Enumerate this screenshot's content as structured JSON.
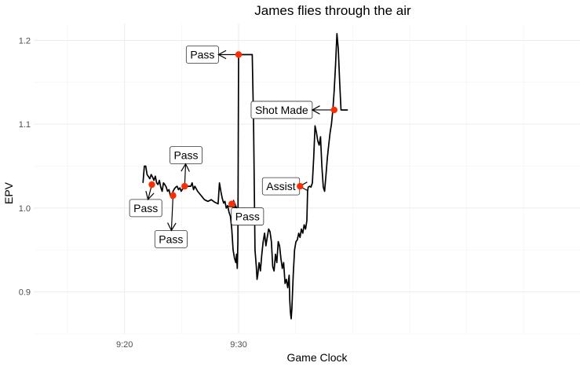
{
  "chart_data": {
    "type": "line",
    "title": "James flies through the air",
    "xlabel": "Game Clock",
    "ylabel": "EPV",
    "xlim": [
      9.2,
      10.0
    ],
    "ylim": [
      0.85,
      1.22
    ],
    "x_ticks": [
      {
        "value": 9.333,
        "label": "9:20"
      },
      {
        "value": 9.5,
        "label": "9:30"
      }
    ],
    "y_ticks": [
      {
        "value": 0.9,
        "label": "0.9"
      },
      {
        "value": 1.0,
        "label": "1.0"
      },
      {
        "value": 1.1,
        "label": "1.1"
      },
      {
        "value": 1.2,
        "label": "1.2"
      }
    ],
    "grid": true,
    "line_color": "#000000",
    "event_color": "#ff2d00",
    "series": [
      {
        "x": [
          9.36,
          9.362,
          9.364,
          9.366,
          9.37,
          9.372,
          9.374,
          9.376,
          9.378,
          9.38,
          9.382,
          9.384,
          9.386,
          9.388,
          9.39,
          9.392,
          9.394,
          9.396,
          9.398,
          9.4,
          9.402,
          9.404,
          9.406,
          9.408,
          9.41,
          9.412,
          9.414,
          9.416,
          9.418,
          9.42,
          9.425,
          9.43,
          9.432,
          9.434,
          9.436,
          9.44,
          9.445,
          9.45,
          9.455,
          9.46,
          9.465,
          9.47,
          9.472,
          9.474,
          9.476,
          9.478,
          9.48,
          9.482,
          9.484,
          9.486,
          9.488,
          9.49,
          9.492,
          9.494,
          9.496,
          9.497,
          9.498,
          9.499,
          9.5,
          9.501,
          9.502,
          9.503,
          9.504,
          9.505,
          9.506,
          9.52,
          9.522,
          9.524,
          9.526,
          9.527,
          9.528,
          9.53,
          9.532,
          9.534,
          9.536,
          9.538,
          9.54,
          9.542,
          9.544,
          9.546,
          9.548,
          9.55,
          9.552,
          9.554,
          9.556,
          9.558,
          9.56,
          9.562,
          9.564,
          9.566,
          9.568,
          9.57,
          9.572,
          9.574,
          9.575,
          9.576,
          9.577,
          9.578,
          9.58,
          9.582,
          9.584,
          9.586,
          9.588,
          9.59,
          9.592,
          9.594,
          9.596,
          9.598,
          9.6,
          9.601,
          9.602,
          9.604,
          9.606,
          9.608,
          9.61,
          9.612,
          9.614,
          9.616,
          9.618,
          9.62,
          9.622,
          9.624,
          9.626,
          9.627,
          9.628,
          9.63,
          9.632,
          9.634,
          9.636,
          9.638,
          9.64,
          9.642,
          9.644,
          9.646,
          9.648,
          9.65,
          9.652,
          9.654,
          9.656,
          9.658,
          9.66
        ],
        "y": [
          1.03,
          1.05,
          1.05,
          1.04,
          1.035,
          1.04,
          1.037,
          1.033,
          1.038,
          1.03,
          1.028,
          1.033,
          1.025,
          1.02,
          1.03,
          1.028,
          1.025,
          1.02,
          1.022,
          1.015,
          1.012,
          1.02,
          1.023,
          1.025,
          1.026,
          1.022,
          1.024,
          1.02,
          1.023,
          1.024,
          1.026,
          1.026,
          1.03,
          1.022,
          1.026,
          1.02,
          1.015,
          1.01,
          1.008,
          1.01,
          1.007,
          1.005,
          1.03,
          1.02,
          1.012,
          1.006,
          1.008,
          1.0,
          1.003,
          0.995,
          0.99,
          0.975,
          0.95,
          0.94,
          0.935,
          0.945,
          0.928,
          0.96,
          1.183,
          1.183,
          1.183,
          1.183,
          1.183,
          1.183,
          1.183,
          1.183,
          1.1,
          0.95,
          0.93,
          0.915,
          0.92,
          0.935,
          0.925,
          0.945,
          0.96,
          0.97,
          0.955,
          0.965,
          0.975,
          0.972,
          0.96,
          0.93,
          0.925,
          0.945,
          0.935,
          0.96,
          0.955,
          0.94,
          0.928,
          0.935,
          0.91,
          0.915,
          0.905,
          0.92,
          0.89,
          0.875,
          0.868,
          0.88,
          0.92,
          0.95,
          0.96,
          0.962,
          0.97,
          0.965,
          0.975,
          0.97,
          0.98,
          0.975,
          0.985,
          1.02,
          1.025,
          1.026,
          1.025,
          1.03,
          1.06,
          1.098,
          1.09,
          1.08,
          1.075,
          1.085,
          1.05,
          1.025,
          1.02,
          1.03,
          1.04,
          1.06,
          1.075,
          1.09,
          1.1,
          1.117,
          1.14,
          1.17,
          1.208,
          1.19,
          1.15,
          1.117,
          1.117,
          1.117,
          1.117,
          1.117,
          1.117
        ]
      }
    ],
    "events": [
      {
        "x": 9.373,
        "y": 1.028,
        "label": "Pass",
        "label_x": 9.364,
        "label_y": 1.0
      },
      {
        "x": 9.404,
        "y": 1.015,
        "label": "Pass",
        "label_x": 9.401,
        "label_y": 0.963
      },
      {
        "x": 9.421,
        "y": 1.026,
        "label": "Pass",
        "label_x": 9.423,
        "label_y": 1.063
      },
      {
        "x": 9.49,
        "y": 1.005,
        "label": "Pass",
        "label_x": 9.513,
        "label_y": 0.99
      },
      {
        "x": 9.5,
        "y": 1.183,
        "label": "Pass",
        "label_x": 9.447,
        "label_y": 1.183
      },
      {
        "x": 9.59,
        "y": 1.026,
        "label": "Assist",
        "label_x": 9.562,
        "label_y": 1.026
      },
      {
        "x": 9.64,
        "y": 1.117,
        "label": "Shot Made",
        "label_x": 9.563,
        "label_y": 1.117
      }
    ]
  }
}
